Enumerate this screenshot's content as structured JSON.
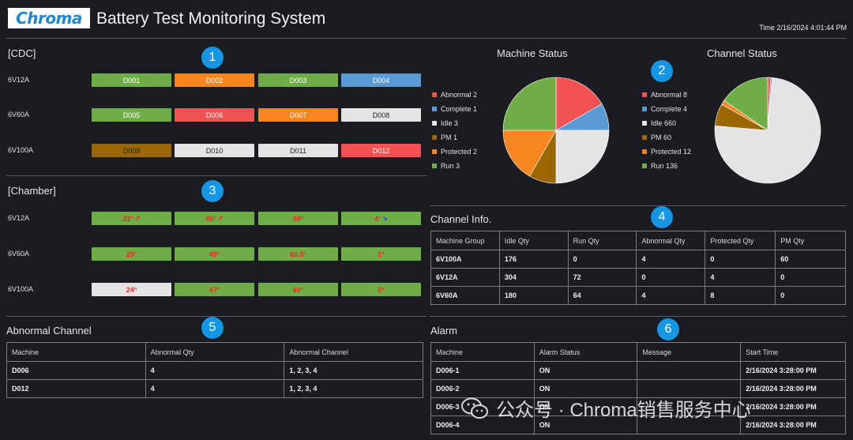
{
  "header": {
    "logo_text": "Chroma",
    "title": "Battery Test Monitoring System",
    "time_label": "Time",
    "time_value": "2/16/2024 4:01:44 PM"
  },
  "badges": [
    "1",
    "2",
    "3",
    "4",
    "5",
    "6"
  ],
  "cdc": {
    "title": "[CDC]",
    "rows": [
      {
        "label": "6V12A",
        "tiles": [
          {
            "text": "D001",
            "status": "run"
          },
          {
            "text": "D002",
            "status": "protected"
          },
          {
            "text": "D003",
            "status": "run"
          },
          {
            "text": "D004",
            "status": "complete"
          }
        ]
      },
      {
        "label": "6V60A",
        "tiles": [
          {
            "text": "D005",
            "status": "run"
          },
          {
            "text": "D006",
            "status": "abnormal"
          },
          {
            "text": "D007",
            "status": "protected"
          },
          {
            "text": "D008",
            "status": "idle"
          }
        ]
      },
      {
        "label": "6V100A",
        "tiles": [
          {
            "text": "D009",
            "status": "pm"
          },
          {
            "text": "D010",
            "status": "idle"
          },
          {
            "text": "D011",
            "status": "idle"
          },
          {
            "text": "D012",
            "status": "abnormal"
          }
        ]
      }
    ]
  },
  "chamber": {
    "title": "[Chamber]",
    "rows": [
      {
        "label": "6V12A",
        "tiles": [
          {
            "text": "22°",
            "status": "run",
            "arrow": "up"
          },
          {
            "text": "40°",
            "status": "run",
            "arrow": "up"
          },
          {
            "text": "59°",
            "status": "run",
            "arrow": ""
          },
          {
            "text": "4°",
            "status": "run",
            "arrow": "down"
          }
        ]
      },
      {
        "label": "6V60A",
        "tiles": [
          {
            "text": "25°",
            "status": "run",
            "arrow": ""
          },
          {
            "text": "45°",
            "status": "run",
            "arrow": ""
          },
          {
            "text": "60.5°",
            "status": "run",
            "arrow": ""
          },
          {
            "text": "1°",
            "status": "run",
            "arrow": ""
          }
        ]
      },
      {
        "label": "6V100A",
        "tiles": [
          {
            "text": "24°",
            "status": "idle",
            "arrow": ""
          },
          {
            "text": "47°",
            "status": "run",
            "arrow": ""
          },
          {
            "text": "60°",
            "status": "run",
            "arrow": ""
          },
          {
            "text": "0°",
            "status": "run",
            "arrow": ""
          }
        ]
      }
    ]
  },
  "colors": {
    "abnormal": "#f25252",
    "complete": "#5b9bd5",
    "idle": "#e4e4e4",
    "pm": "#9a6702",
    "protected": "#f6861f",
    "run": "#6fae47"
  },
  "icons": {
    "up": "↗",
    "down": "↘",
    "wechat": "wechat-icon"
  },
  "chart_data": [
    {
      "type": "pie",
      "title": "Machine Status",
      "legend": [
        "Abnormal 2",
        "Complete 1",
        "Idle 3",
        "PM 1",
        "Protected 2",
        "Run 3"
      ],
      "series": [
        {
          "labels": [
            "Abnormal",
            "Complete",
            "Idle",
            "PM",
            "Protected",
            "Run"
          ],
          "values": [
            2,
            1,
            3,
            1,
            2,
            3
          ]
        }
      ],
      "legend_position": "left"
    },
    {
      "type": "pie",
      "title": "Channel Status",
      "legend": [
        "Abnormal 8",
        "Complete 4",
        "Idle 660",
        "PM 60",
        "Protected 12",
        "Run 136"
      ],
      "series": [
        {
          "labels": [
            "Abnormal",
            "Complete",
            "Idle",
            "PM",
            "Protected",
            "Run"
          ],
          "values": [
            8,
            4,
            660,
            60,
            12,
            136
          ]
        }
      ],
      "legend_position": "left"
    }
  ],
  "channel_info": {
    "title": "Channel Info.",
    "columns": [
      "Machine Group",
      "Idle Qty",
      "Run Qty",
      "Abnormal Qty",
      "Protected Qty",
      "PM Qty"
    ],
    "rows": [
      [
        "6V100A",
        "176",
        "0",
        "4",
        "0",
        "60"
      ],
      [
        "6V12A",
        "304",
        "72",
        "0",
        "4",
        "0"
      ],
      [
        "6V60A",
        "180",
        "64",
        "4",
        "8",
        "0"
      ]
    ]
  },
  "abnormal_channel": {
    "title": "Abnormal Channel",
    "columns": [
      "Machine",
      "Abnormal Qty",
      "Abnormal Channel"
    ],
    "rows": [
      [
        "D006",
        "4",
        "1, 2, 3, 4"
      ],
      [
        "D012",
        "4",
        "1, 2, 3, 4"
      ]
    ]
  },
  "alarm": {
    "title": "Alarm",
    "columns": [
      "Machine",
      "Alarm Status",
      "Message",
      "Start Time"
    ],
    "rows": [
      [
        "D006-1",
        "ON",
        "",
        "2/16/2024 3:28:00 PM"
      ],
      [
        "D006-2",
        "ON",
        "",
        "2/16/2024 3:28:00 PM"
      ],
      [
        "D006-3",
        "ON",
        "",
        "2/16/2024 3:28:00 PM"
      ],
      [
        "D006-4",
        "ON",
        "",
        "2/16/2024 3:28:00 PM"
      ]
    ]
  },
  "watermark": {
    "text": "公众号 · Chroma销售服务中心"
  }
}
